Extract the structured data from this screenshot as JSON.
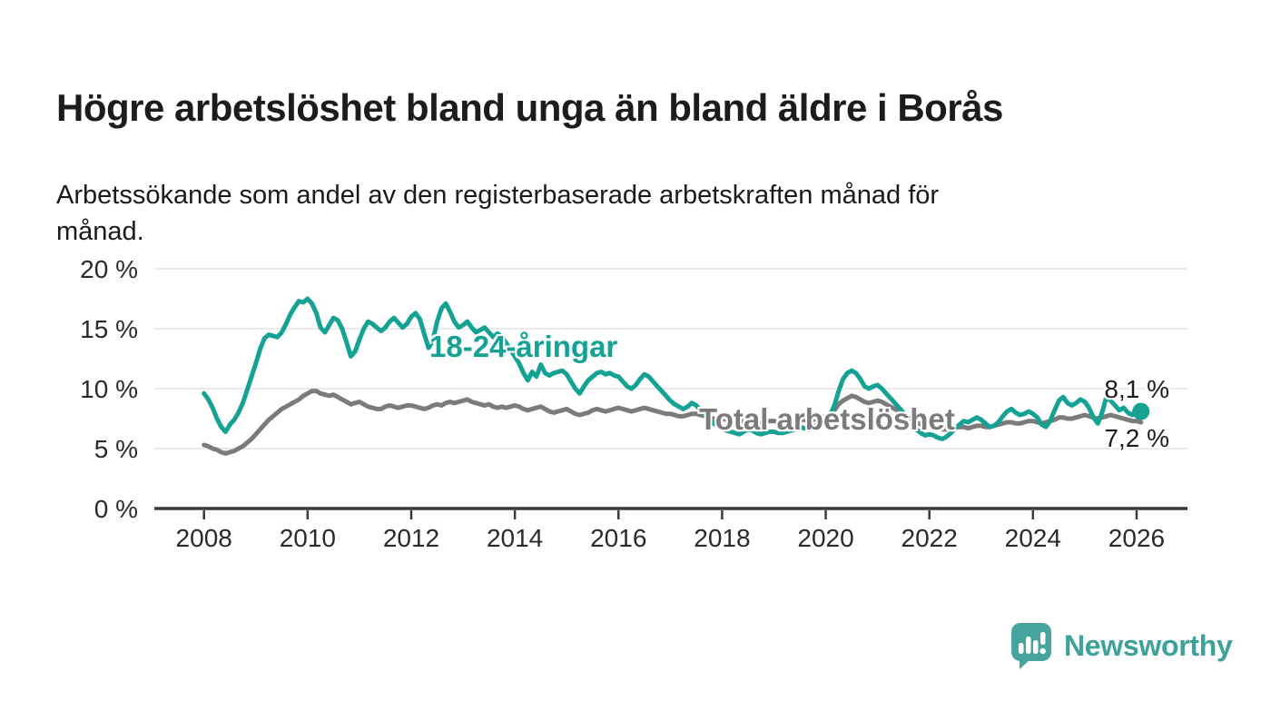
{
  "header": {
    "title": "Högre arbetslöshet bland unga än bland äldre i Borås",
    "subtitle": "Arbetssökande som andel av den registerbaserade arbetskraften månad för månad."
  },
  "footer": {
    "brand": "Newsworthy",
    "brand_color": "#3da29a",
    "logo_icon": "speech-bubble-bar-chart-icon",
    "logo_bg_color": "#46a49c"
  },
  "chart_data": {
    "type": "line",
    "title": "Högre arbetslöshet bland unga än bland äldre i Borås",
    "subtitle": "Arbetssökande som andel av den registerbaserade arbetskraften månad för månad.",
    "xlabel": "",
    "ylabel": "",
    "ylim": [
      0,
      20
    ],
    "grid": "horizontal",
    "legend_position": "inline-labels",
    "x_start": "2008-01",
    "x_end": "2026-02",
    "frequency": "monthly",
    "y_axis": {
      "ticks": [
        {
          "value": 0,
          "label": "0 %"
        },
        {
          "value": 5,
          "label": "5 %"
        },
        {
          "value": 10,
          "label": "10 %"
        },
        {
          "value": 15,
          "label": "15 %"
        },
        {
          "value": 20,
          "label": "20 %"
        }
      ]
    },
    "x_axis": {
      "ticks": [
        {
          "value": 2008,
          "label": "2008"
        },
        {
          "value": 2010,
          "label": "2010"
        },
        {
          "value": 2012,
          "label": "2012"
        },
        {
          "value": 2014,
          "label": "2014"
        },
        {
          "value": 2016,
          "label": "2016"
        },
        {
          "value": 2018,
          "label": "2018"
        },
        {
          "value": 2020,
          "label": "2020"
        },
        {
          "value": 2022,
          "label": "2022"
        },
        {
          "value": 2024,
          "label": "2024"
        },
        {
          "value": 2026,
          "label": "2026"
        }
      ]
    },
    "series": [
      {
        "name": "18-24-åringar",
        "color": "#14a294",
        "end_label": "8,1 %",
        "end_dot": true,
        "values": [
          9.6,
          9.1,
          8.4,
          7.5,
          6.8,
          6.4,
          7.0,
          7.4,
          8.0,
          8.8,
          9.9,
          11.0,
          12.1,
          13.3,
          14.2,
          14.5,
          14.4,
          14.3,
          14.7,
          15.4,
          16.2,
          16.8,
          17.3,
          17.2,
          17.5,
          17.1,
          16.3,
          15.1,
          14.7,
          15.3,
          15.9,
          15.7,
          15.0,
          13.9,
          12.7,
          13.1,
          14.1,
          15.0,
          15.6,
          15.4,
          15.1,
          14.8,
          15.1,
          15.6,
          15.9,
          15.5,
          15.1,
          15.4,
          16.0,
          16.3,
          15.8,
          14.6,
          13.4,
          14.0,
          15.6,
          16.7,
          17.1,
          16.4,
          15.6,
          15.1,
          15.3,
          15.6,
          15.1,
          14.7,
          14.9,
          15.1,
          14.7,
          14.3,
          14.6,
          14.3,
          13.8,
          13.2,
          12.7,
          12.1,
          11.3,
          10.7,
          11.4,
          11.0,
          12.0,
          11.3,
          11.1,
          11.3,
          11.4,
          11.5,
          11.2,
          10.6,
          10.0,
          9.6,
          10.2,
          10.7,
          11.0,
          11.3,
          11.4,
          11.2,
          11.3,
          11.1,
          11.0,
          10.6,
          10.2,
          10.0,
          10.3,
          10.8,
          11.2,
          11.0,
          10.6,
          10.2,
          9.8,
          9.4,
          9.0,
          8.7,
          8.5,
          8.3,
          8.5,
          8.8,
          8.6,
          8.2,
          7.8,
          7.4,
          7.1,
          6.9,
          6.7,
          6.5,
          6.4,
          6.3,
          6.2,
          6.4,
          6.6,
          6.5,
          6.3,
          6.2,
          6.3,
          6.4,
          6.4,
          6.3,
          6.3,
          6.4,
          6.5,
          6.6,
          6.8,
          6.7,
          6.6,
          6.8,
          7.0,
          7.3,
          7.5,
          7.8,
          8.6,
          9.8,
          10.8,
          11.3,
          11.5,
          11.3,
          10.8,
          10.2,
          10.0,
          10.2,
          10.3,
          10.0,
          9.6,
          9.2,
          8.8,
          8.4,
          8.0,
          7.5,
          7.0,
          6.6,
          6.3,
          6.1,
          6.2,
          6.1,
          5.9,
          5.8,
          6.0,
          6.3,
          6.7,
          7.0,
          7.3,
          7.2,
          7.4,
          7.6,
          7.4,
          7.1,
          6.8,
          6.9,
          7.2,
          7.7,
          8.1,
          8.3,
          8.0,
          7.8,
          7.9,
          8.1,
          7.9,
          7.6,
          7.0,
          6.8,
          7.3,
          8.2,
          9.0,
          9.3,
          8.8,
          8.6,
          8.8,
          9.1,
          8.9,
          8.4,
          7.6,
          7.1,
          8.0,
          9.3,
          9.0,
          8.6,
          8.2,
          8.4,
          8.0,
          7.8,
          8.3,
          8.1
        ]
      },
      {
        "name": "Total arbetslöshet",
        "color": "#7d7a7a",
        "end_label": "7,2 %",
        "end_dot": false,
        "values": [
          5.3,
          5.2,
          5.0,
          4.9,
          4.7,
          4.6,
          4.7,
          4.8,
          5.0,
          5.2,
          5.5,
          5.8,
          6.2,
          6.6,
          7.0,
          7.4,
          7.7,
          8.0,
          8.3,
          8.5,
          8.7,
          8.9,
          9.1,
          9.4,
          9.6,
          9.8,
          9.8,
          9.6,
          9.5,
          9.4,
          9.5,
          9.3,
          9.1,
          8.9,
          8.7,
          8.8,
          8.9,
          8.7,
          8.5,
          8.4,
          8.3,
          8.3,
          8.5,
          8.6,
          8.5,
          8.4,
          8.5,
          8.6,
          8.6,
          8.5,
          8.4,
          8.3,
          8.4,
          8.6,
          8.7,
          8.6,
          8.8,
          8.9,
          8.8,
          8.9,
          9.0,
          9.1,
          8.9,
          8.8,
          8.7,
          8.6,
          8.7,
          8.5,
          8.4,
          8.5,
          8.4,
          8.5,
          8.6,
          8.5,
          8.3,
          8.2,
          8.3,
          8.4,
          8.5,
          8.3,
          8.1,
          8.0,
          8.1,
          8.2,
          8.3,
          8.1,
          7.9,
          7.8,
          7.9,
          8.0,
          8.2,
          8.3,
          8.2,
          8.1,
          8.2,
          8.3,
          8.4,
          8.3,
          8.2,
          8.1,
          8.2,
          8.3,
          8.4,
          8.3,
          8.2,
          8.1,
          8.0,
          7.9,
          7.9,
          7.8,
          7.7,
          7.7,
          7.8,
          7.9,
          7.9,
          7.8,
          7.7,
          7.6,
          7.5,
          7.5,
          7.5,
          7.4,
          7.3,
          7.3,
          7.2,
          7.3,
          7.4,
          7.3,
          7.2,
          7.1,
          7.2,
          7.3,
          7.3,
          7.2,
          7.2,
          7.1,
          7.2,
          7.3,
          7.4,
          7.4,
          7.3,
          7.4,
          7.5,
          7.6,
          7.7,
          7.8,
          8.2,
          8.7,
          9.0,
          9.2,
          9.4,
          9.3,
          9.1,
          8.9,
          8.8,
          8.9,
          9.0,
          8.9,
          8.7,
          8.5,
          8.3,
          8.1,
          7.9,
          7.7,
          7.4,
          7.2,
          7.0,
          6.9,
          6.9,
          6.8,
          6.7,
          6.6,
          6.6,
          6.7,
          6.8,
          6.8,
          6.8,
          6.7,
          6.8,
          6.9,
          6.9,
          6.8,
          6.8,
          6.9,
          7.0,
          7.1,
          7.2,
          7.2,
          7.1,
          7.1,
          7.2,
          7.3,
          7.3,
          7.2,
          7.1,
          7.2,
          7.3,
          7.4,
          7.6,
          7.6,
          7.5,
          7.5,
          7.6,
          7.7,
          7.8,
          7.7,
          7.6,
          7.5,
          7.6,
          7.7,
          7.8,
          7.7,
          7.6,
          7.5,
          7.4,
          7.3,
          7.3,
          7.2
        ]
      }
    ],
    "annotations": [
      {
        "text": "18-24-åringar",
        "series": "18-24-åringar",
        "type": "series-label"
      },
      {
        "text": "Total arbetslöshet",
        "series": "Total arbetslöshet",
        "type": "series-label"
      },
      {
        "text": "8,1 %",
        "series": "18-24-åringar",
        "type": "end-value"
      },
      {
        "text": "7,2 %",
        "series": "Total arbetslöshet",
        "type": "end-value"
      }
    ],
    "colors": {
      "gridline": "#e4e4e4",
      "axis": "#3a3a3a",
      "tick_text": "#2a2a2a"
    }
  }
}
